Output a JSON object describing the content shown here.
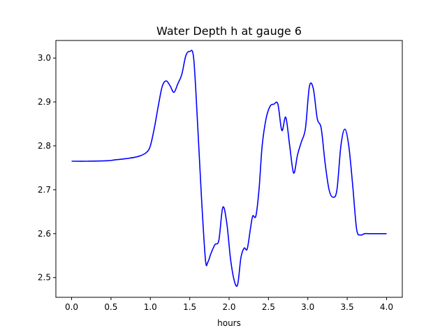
{
  "chart_data": {
    "type": "line",
    "title": "Water Depth h at gauge 6",
    "xlabel": "hours",
    "ylabel": "",
    "xlim": [
      -0.2,
      4.2
    ],
    "ylim": [
      2.455,
      3.04
    ],
    "xticks": [
      0.0,
      0.5,
      1.0,
      1.5,
      2.0,
      2.5,
      3.0,
      3.5,
      4.0
    ],
    "xtick_labels": [
      "0.0",
      "0.5",
      "1.0",
      "1.5",
      "2.0",
      "2.5",
      "3.0",
      "3.5",
      "4.0"
    ],
    "yticks": [
      2.5,
      2.6,
      2.7,
      2.8,
      2.9,
      3.0
    ],
    "ytick_labels": [
      "2.5",
      "2.6",
      "2.7",
      "2.8",
      "2.9",
      "3.0"
    ],
    "grid": false,
    "series": [
      {
        "color": "#0000ff",
        "x": [
          0.0,
          0.2,
          0.45,
          0.55,
          0.7,
          0.85,
          0.95,
          1.0,
          1.05,
          1.1,
          1.15,
          1.2,
          1.25,
          1.3,
          1.35,
          1.4,
          1.45,
          1.5,
          1.55,
          1.6,
          1.65,
          1.7,
          1.73,
          1.77,
          1.82,
          1.87,
          1.92,
          1.97,
          2.02,
          2.07,
          2.11,
          2.15,
          2.19,
          2.23,
          2.27,
          2.3,
          2.34,
          2.38,
          2.42,
          2.47,
          2.52,
          2.57,
          2.62,
          2.67,
          2.72,
          2.77,
          2.82,
          2.87,
          2.92,
          2.97,
          3.02,
          3.07,
          3.12,
          3.17,
          3.22,
          3.27,
          3.32,
          3.37,
          3.42,
          3.47,
          3.52,
          3.57,
          3.62,
          3.67,
          3.72,
          3.77,
          3.82,
          3.87,
          3.91,
          3.95,
          4.0
        ],
        "y": [
          2.765,
          2.765,
          2.766,
          2.768,
          2.771,
          2.776,
          2.785,
          2.8,
          2.84,
          2.89,
          2.935,
          2.948,
          2.937,
          2.922,
          2.942,
          2.963,
          3.005,
          3.015,
          3.0,
          2.85,
          2.68,
          2.54,
          2.535,
          2.555,
          2.575,
          2.585,
          2.66,
          2.625,
          2.54,
          2.49,
          2.485,
          2.545,
          2.567,
          2.565,
          2.61,
          2.64,
          2.64,
          2.7,
          2.8,
          2.862,
          2.89,
          2.895,
          2.895,
          2.835,
          2.865,
          2.8,
          2.738,
          2.78,
          2.81,
          2.84,
          2.935,
          2.93,
          2.862,
          2.84,
          2.76,
          2.7,
          2.683,
          2.7,
          2.8,
          2.838,
          2.8,
          2.71,
          2.61,
          2.597,
          2.6,
          2.6,
          2.6,
          2.6,
          2.6,
          2.6,
          2.6
        ]
      }
    ]
  }
}
